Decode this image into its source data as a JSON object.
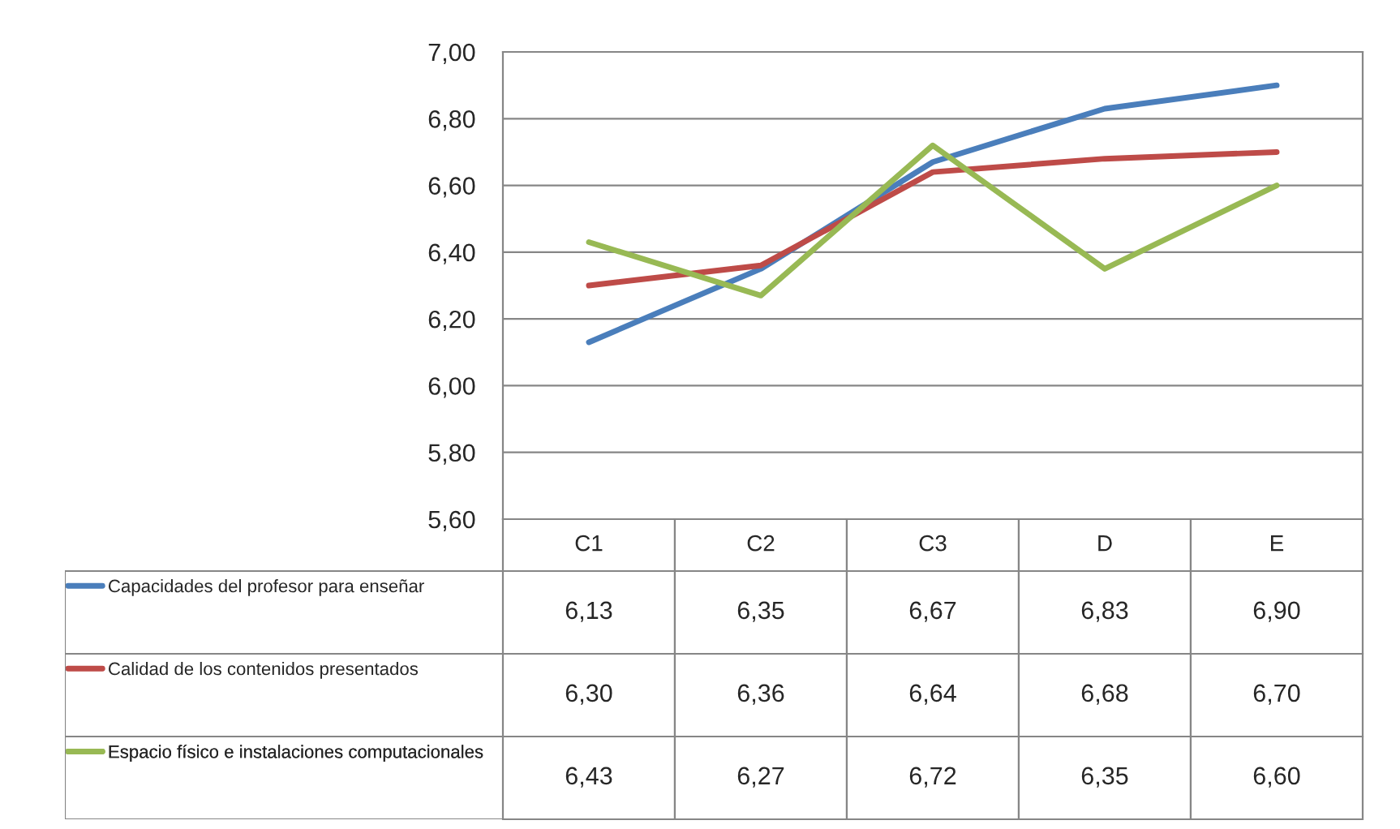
{
  "chart_data": {
    "type": "line",
    "categories": [
      "C1",
      "C2",
      "C3",
      "D",
      "E"
    ],
    "series": [
      {
        "name": "Capacidades del profesor para enseñar",
        "color": "#4a7ebb",
        "values": [
          6.13,
          6.35,
          6.67,
          6.83,
          6.9
        ],
        "value_labels": [
          "6,13",
          "6,35",
          "6,67",
          "6,83",
          "6,90"
        ]
      },
      {
        "name": "Calidad de los contenidos presentados",
        "color": "#be4b48",
        "values": [
          6.3,
          6.36,
          6.64,
          6.68,
          6.7
        ],
        "value_labels": [
          "6,30",
          "6,36",
          "6,64",
          "6,68",
          "6,70"
        ]
      },
      {
        "name": "Espacio físico e instalaciones computacionales",
        "color": "#98b954",
        "values": [
          6.43,
          6.27,
          6.72,
          6.35,
          6.6
        ],
        "value_labels": [
          "6,43",
          "6,27",
          "6,72",
          "6,35",
          "6,60"
        ]
      }
    ],
    "ylim": [
      5.6,
      7.0
    ],
    "yticks": [
      {
        "value": 5.6,
        "label": "5,60"
      },
      {
        "value": 5.8,
        "label": "5,80"
      },
      {
        "value": 6.0,
        "label": "6,00"
      },
      {
        "value": 6.2,
        "label": "6,20"
      },
      {
        "value": 6.4,
        "label": "6,40"
      },
      {
        "value": 6.6,
        "label": "6,60"
      },
      {
        "value": 6.8,
        "label": "6,80"
      },
      {
        "value": 7.0,
        "label": "7,00"
      }
    ],
    "grid": "y",
    "legend": "bottom left",
    "line_style": "solid",
    "marker": "none"
  }
}
